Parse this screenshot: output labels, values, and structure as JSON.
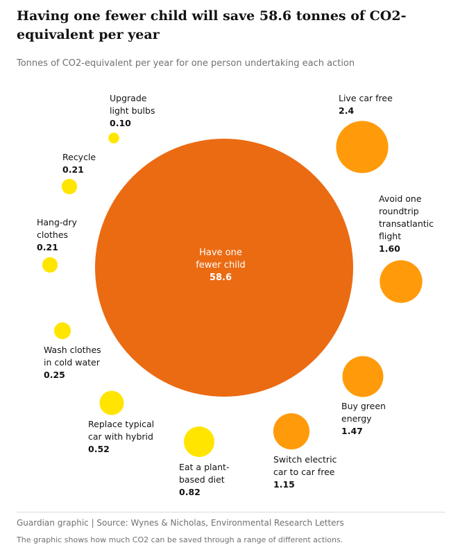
{
  "chart_data": {
    "type": "bubble",
    "title": "Having one fewer child will save 58.6 tonnes of CO2-equivalent per year",
    "subtitle": "Tonnes of CO2-equivalent per year for one person undertaking each action",
    "unit": "Tonnes of CO2-equivalent per year",
    "items": [
      {
        "label": "Have one fewer child",
        "value": 58.6,
        "value_text": "58.6",
        "color": "#eb6b13"
      },
      {
        "label": "Live car free",
        "value": 2.4,
        "value_text": "2.4",
        "color": "#ff9b0b"
      },
      {
        "label": "Avoid one roundtrip transatlantic flight",
        "value": 1.6,
        "value_text": "1.60",
        "color": "#ff9b0b"
      },
      {
        "label": "Buy green energy",
        "value": 1.47,
        "value_text": "1.47",
        "color": "#ff9b0b"
      },
      {
        "label": "Switch electric car to car free",
        "value": 1.15,
        "value_text": "1.15",
        "color": "#ff9b0b"
      },
      {
        "label": "Eat a plant-based diet",
        "value": 0.82,
        "value_text": "0.82",
        "color": "#ffe500"
      },
      {
        "label": "Replace typical car with hybrid",
        "value": 0.52,
        "value_text": "0.52",
        "color": "#ffe500"
      },
      {
        "label": "Wash clothes in cold water",
        "value": 0.25,
        "value_text": "0.25",
        "color": "#ffe500"
      },
      {
        "label": "Hang-dry clothes",
        "value": 0.21,
        "value_text": "0.21",
        "color": "#ffe500"
      },
      {
        "label": "Recycle",
        "value": 0.21,
        "value_text": "0.21",
        "color": "#ffe500"
      },
      {
        "label": "Upgrade light bulbs",
        "value": 0.1,
        "value_text": "0.10",
        "color": "#ffe500"
      }
    ]
  },
  "footer": {
    "source": "Guardian graphic | Source: Wynes & Nicholas, Environmental Research Letters",
    "note": "The graphic shows how much CO2 can be saved through a range of different actions."
  }
}
